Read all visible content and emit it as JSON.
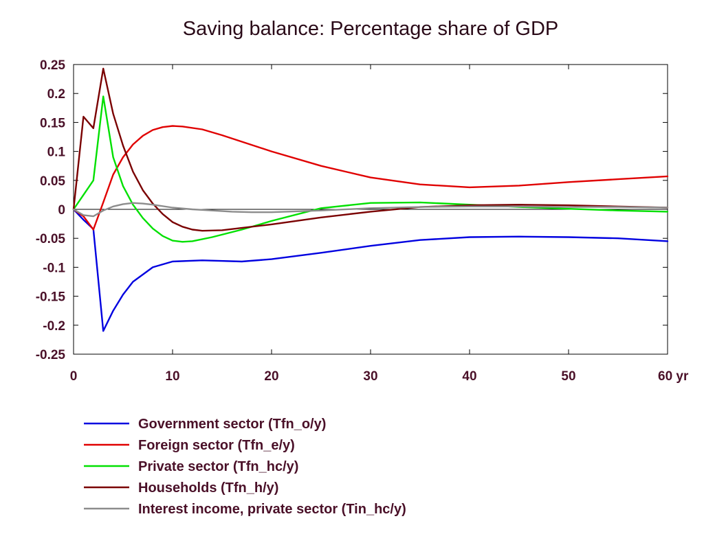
{
  "chart_data": {
    "type": "line",
    "title": "Saving balance: Percentage share of GDP",
    "xlabel": "",
    "ylabel": "",
    "xlim": [
      0,
      60
    ],
    "ylim": [
      -0.25,
      0.25
    ],
    "x_ticks": [
      0,
      10,
      20,
      30,
      40,
      50,
      60
    ],
    "x_tick_labels": [
      "0",
      "10",
      "20",
      "30",
      "40",
      "50",
      "60 yr"
    ],
    "y_ticks": [
      0.25,
      0.2,
      0.15,
      0.1,
      0.05,
      0,
      -0.05,
      -0.1,
      -0.15,
      -0.2,
      -0.25
    ],
    "y_tick_labels": [
      "0.25",
      "0.2",
      "0.15",
      "0.1",
      "0.05",
      "0",
      "-0.05",
      "-0.1",
      "-0.15",
      "-0.2",
      "-0.25"
    ],
    "zero_line": true,
    "grid": false,
    "legend_position": "bottom",
    "series": [
      {
        "name": "Government sector (Tfn_o/y)",
        "color": "#0000e0",
        "x": [
          0,
          1,
          2,
          3,
          4,
          5,
          6,
          8,
          10,
          13,
          17,
          20,
          25,
          30,
          35,
          40,
          45,
          50,
          55,
          60
        ],
        "y": [
          0,
          -0.018,
          -0.034,
          -0.21,
          -0.175,
          -0.147,
          -0.125,
          -0.1,
          -0.09,
          -0.088,
          -0.09,
          -0.086,
          -0.075,
          -0.063,
          -0.053,
          -0.048,
          -0.047,
          -0.048,
          -0.05,
          -0.055
        ]
      },
      {
        "name": "Foreign sector (Tfn_e/y)",
        "color": "#e00000",
        "x": [
          0,
          1,
          2,
          3,
          4,
          5,
          6,
          7,
          8,
          9,
          10,
          11,
          13,
          15,
          20,
          25,
          30,
          35,
          40,
          45,
          50,
          55,
          60
        ],
        "y": [
          0,
          -0.012,
          -0.035,
          0.012,
          0.06,
          0.09,
          0.112,
          0.127,
          0.137,
          0.142,
          0.144,
          0.143,
          0.138,
          0.128,
          0.1,
          0.075,
          0.055,
          0.043,
          0.038,
          0.041,
          0.047,
          0.052,
          0.057
        ]
      },
      {
        "name": "Private sector (Tfn_hc/y)",
        "color": "#00e000",
        "x": [
          0,
          1,
          2,
          3,
          4,
          5,
          6,
          7,
          8,
          9,
          10,
          11,
          12,
          14,
          17,
          20,
          25,
          30,
          35,
          40,
          45,
          50,
          55,
          60
        ],
        "y": [
          0,
          0.025,
          0.05,
          0.195,
          0.09,
          0.04,
          0.008,
          -0.015,
          -0.033,
          -0.046,
          -0.054,
          -0.056,
          -0.055,
          -0.048,
          -0.035,
          -0.02,
          0.002,
          0.011,
          0.012,
          0.008,
          0.004,
          0.001,
          -0.002,
          -0.004
        ]
      },
      {
        "name": "Households (Tfn_h/y)",
        "color": "#7a0000",
        "x": [
          0,
          1,
          2,
          3,
          4,
          5,
          6,
          7,
          8,
          9,
          10,
          11,
          12,
          13,
          15,
          20,
          25,
          30,
          35,
          40,
          45,
          50,
          55,
          60
        ],
        "y": [
          0,
          0.16,
          0.14,
          0.243,
          0.165,
          0.11,
          0.065,
          0.033,
          0.01,
          -0.008,
          -0.022,
          -0.03,
          -0.035,
          -0.037,
          -0.036,
          -0.026,
          -0.014,
          -0.004,
          0.004,
          0.007,
          0.008,
          0.007,
          0.005,
          0.003
        ]
      },
      {
        "name": "Interest income, private sector (Tin_hc/y)",
        "color": "#8c8c8c",
        "x": [
          0,
          1,
          2,
          3,
          4,
          5,
          6,
          7,
          8,
          10,
          12,
          14,
          16,
          18,
          20,
          25,
          30,
          35,
          40,
          45,
          50,
          55,
          60
        ],
        "y": [
          0,
          -0.01,
          -0.012,
          -0.002,
          0.005,
          0.009,
          0.011,
          0.01,
          0.008,
          0.003,
          0,
          -0.002,
          -0.004,
          -0.005,
          -0.005,
          -0.002,
          0.002,
          0.004,
          0.005,
          0.005,
          0.004,
          0.004,
          0.003
        ]
      }
    ]
  }
}
